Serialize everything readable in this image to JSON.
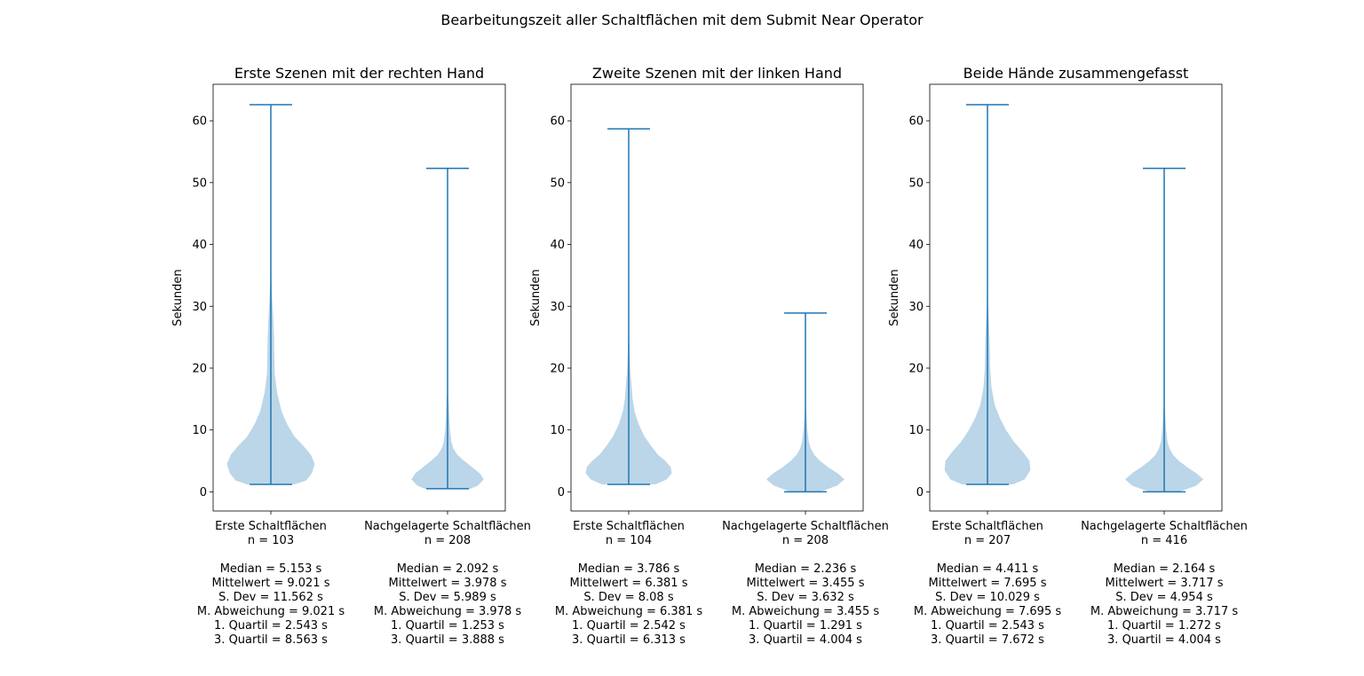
{
  "figure_title": "Bearbeitungszeit aller Schaltflächen mit dem Submit Near Operator",
  "colors": {
    "violin_fill": "#1f77b4",
    "line": "#1f77b4",
    "axes": "#000000",
    "background": "#ffffff"
  },
  "chart_data": [
    {
      "type": "violin",
      "title": "Erste Szenen mit der rechten Hand",
      "ylabel": "Sekunden",
      "ylim": [
        -3.1,
        65.9
      ],
      "yticks": [
        0,
        10,
        20,
        30,
        40,
        50,
        60
      ],
      "grid": false,
      "series": [
        {
          "category": "Erste Schaltflächen",
          "n_label": "n = 103",
          "min": 1.2,
          "max": 62.6,
          "stats": [
            "Median = 5.153 s",
            "Mittelwert = 9.021 s",
            "S. Dev = 11.562 s",
            "M. Abweichung = 9.021 s",
            "1. Quartil = 2.543 s",
            "3. Quartil = 8.563 s"
          ],
          "density": [
            [
              1.2,
              0.48
            ],
            [
              1.8,
              0.72
            ],
            [
              3,
              0.84
            ],
            [
              4.5,
              0.9
            ],
            [
              6,
              0.82
            ],
            [
              7.5,
              0.66
            ],
            [
              9,
              0.48
            ],
            [
              11,
              0.33
            ],
            [
              13,
              0.22
            ],
            [
              16,
              0.13
            ],
            [
              19,
              0.08
            ],
            [
              22,
              0.07
            ],
            [
              25,
              0.065
            ],
            [
              28,
              0.05
            ],
            [
              31,
              0.03
            ],
            [
              34,
              0.012
            ],
            [
              37,
              0.005
            ],
            [
              45,
              0.002
            ],
            [
              55,
              0.001
            ],
            [
              62.6,
              0
            ]
          ]
        },
        {
          "category": "Nachgelagerte Schaltflächen",
          "n_label": "n = 208",
          "min": 0.5,
          "max": 52.3,
          "stats": [
            "Median = 2.092 s",
            "Mittelwert = 3.978 s",
            "S. Dev = 5.989 s",
            "M. Abweichung = 3.978 s",
            "1. Quartil = 1.253 s",
            "3. Quartil = 3.888 s"
          ],
          "density": [
            [
              0.5,
              0.47
            ],
            [
              1,
              0.62
            ],
            [
              2,
              0.74
            ],
            [
              3,
              0.66
            ],
            [
              4,
              0.5
            ],
            [
              5,
              0.34
            ],
            [
              6,
              0.2
            ],
            [
              7,
              0.12
            ],
            [
              8,
              0.08
            ],
            [
              10,
              0.05
            ],
            [
              12,
              0.035
            ],
            [
              14,
              0.025
            ],
            [
              16,
              0.01
            ],
            [
              18,
              0.005
            ],
            [
              25,
              0.002
            ],
            [
              35,
              0.001
            ],
            [
              52.3,
              0
            ]
          ]
        }
      ]
    },
    {
      "type": "violin",
      "title": "Zweite Szenen mit der linken Hand",
      "ylabel": "Sekunden",
      "ylim": [
        -3.1,
        65.9
      ],
      "yticks": [
        0,
        10,
        20,
        30,
        40,
        50,
        60
      ],
      "grid": false,
      "series": [
        {
          "category": "Erste Schaltflächen",
          "n_label": "n = 104",
          "min": 1.2,
          "max": 58.7,
          "stats": [
            "Median = 3.786 s",
            "Mittelwert = 6.381 s",
            "S. Dev = 8.08 s",
            "M. Abweichung = 6.381 s",
            "1. Quartil = 2.542 s",
            "3. Quartil = 6.313 s"
          ],
          "density": [
            [
              1.2,
              0.55
            ],
            [
              2,
              0.78
            ],
            [
              3,
              0.88
            ],
            [
              4,
              0.86
            ],
            [
              5,
              0.75
            ],
            [
              6,
              0.6
            ],
            [
              7.5,
              0.45
            ],
            [
              9,
              0.32
            ],
            [
              11,
              0.2
            ],
            [
              13,
              0.12
            ],
            [
              15,
              0.08
            ],
            [
              17,
              0.06
            ],
            [
              20,
              0.03
            ],
            [
              24,
              0.012
            ],
            [
              28,
              0.005
            ],
            [
              35,
              0.002
            ],
            [
              45,
              0.001
            ],
            [
              58.7,
              0
            ]
          ]
        },
        {
          "category": "Nachgelagerte Schaltflächen",
          "n_label": "n = 208",
          "min": 0,
          "max": 28.9,
          "stats": [
            "Median = 2.236 s",
            "Mittelwert = 3.455 s",
            "S. Dev = 3.632 s",
            "M. Abweichung = 3.455 s",
            "1. Quartil = 1.291 s",
            "3. Quartil = 4.004 s"
          ],
          "density": [
            [
              0,
              0.3
            ],
            [
              1,
              0.65
            ],
            [
              2,
              0.8
            ],
            [
              3,
              0.66
            ],
            [
              4,
              0.46
            ],
            [
              5,
              0.3
            ],
            [
              6,
              0.18
            ],
            [
              7,
              0.11
            ],
            [
              8,
              0.07
            ],
            [
              10,
              0.04
            ],
            [
              12,
              0.02
            ],
            [
              14,
              0.01
            ],
            [
              18,
              0.004
            ],
            [
              23,
              0.002
            ],
            [
              28.9,
              0
            ]
          ]
        }
      ]
    },
    {
      "type": "violin",
      "title": "Beide Hände zusammengefasst",
      "ylabel": "Sekunden",
      "ylim": [
        -3.1,
        65.9
      ],
      "yticks": [
        0,
        10,
        20,
        30,
        40,
        50,
        60
      ],
      "grid": false,
      "series": [
        {
          "category": "Erste Schaltflächen",
          "n_label": "n = 207",
          "min": 1.2,
          "max": 62.6,
          "stats": [
            "Median = 4.411 s",
            "Mittelwert = 7.695 s",
            "S. Dev = 10.029 s",
            "M. Abweichung = 7.695 s",
            "1. Quartil = 2.543 s",
            "3. Quartil = 7.672 s"
          ],
          "density": [
            [
              1.2,
              0.52
            ],
            [
              2,
              0.76
            ],
            [
              3.5,
              0.88
            ],
            [
              5,
              0.86
            ],
            [
              6.5,
              0.72
            ],
            [
              8,
              0.55
            ],
            [
              10,
              0.38
            ],
            [
              12,
              0.25
            ],
            [
              14,
              0.15
            ],
            [
              17,
              0.08
            ],
            [
              20,
              0.055
            ],
            [
              24,
              0.045
            ],
            [
              27,
              0.03
            ],
            [
              30,
              0.012
            ],
            [
              33,
              0.004
            ],
            [
              40,
              0.002
            ],
            [
              50,
              0.001
            ],
            [
              62.6,
              0
            ]
          ]
        },
        {
          "category": "Nachgelagerte Schaltflächen",
          "n_label": "n = 416",
          "min": 0,
          "max": 52.3,
          "stats": [
            "Median = 2.164 s",
            "Mittelwert = 3.717 s",
            "S. Dev = 4.954 s",
            "M. Abweichung = 3.717 s",
            "1. Quartil = 1.272 s",
            "3. Quartil = 4.004 s"
          ],
          "density": [
            [
              0,
              0.3
            ],
            [
              1,
              0.66
            ],
            [
              2,
              0.8
            ],
            [
              3,
              0.66
            ],
            [
              4,
              0.47
            ],
            [
              5,
              0.3
            ],
            [
              6,
              0.18
            ],
            [
              7,
              0.11
            ],
            [
              8,
              0.07
            ],
            [
              10,
              0.04
            ],
            [
              12,
              0.025
            ],
            [
              14,
              0.01
            ],
            [
              18,
              0.004
            ],
            [
              25,
              0.002
            ],
            [
              35,
              0.001
            ],
            [
              52.3,
              0
            ]
          ]
        }
      ]
    }
  ]
}
